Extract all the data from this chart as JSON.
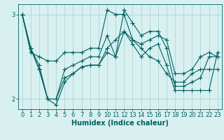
{
  "background_color": "#d8f0f0",
  "plot_bg_color": "#d8f0f0",
  "line_color": "#006060",
  "grid_color": "#aacfcf",
  "xlabel": "Humidex (Indice chaleur)",
  "xlim": [
    -0.5,
    23.5
  ],
  "ylim": [
    1.88,
    3.12
  ],
  "yticks": [
    2,
    3
  ],
  "xticks": [
    0,
    1,
    2,
    3,
    4,
    5,
    6,
    7,
    8,
    9,
    10,
    11,
    12,
    13,
    14,
    15,
    16,
    17,
    18,
    19,
    20,
    21,
    22,
    23
  ],
  "series": [
    [
      3.0,
      2.55,
      2.5,
      2.45,
      2.45,
      2.55,
      2.55,
      2.55,
      2.6,
      2.6,
      3.05,
      3.0,
      3.0,
      2.7,
      2.65,
      2.7,
      2.75,
      2.7,
      2.3,
      2.3,
      2.35,
      2.5,
      2.55,
      2.5
    ],
    [
      3.0,
      2.6,
      2.35,
      2.0,
      2.0,
      2.25,
      2.3,
      2.38,
      2.4,
      2.4,
      2.6,
      2.7,
      2.8,
      2.7,
      2.6,
      2.5,
      2.45,
      2.3,
      2.2,
      2.2,
      2.3,
      2.35,
      2.35,
      2.35
    ],
    [
      3.0,
      2.6,
      2.35,
      2.0,
      1.93,
      2.2,
      2.3,
      2.38,
      2.4,
      2.4,
      2.55,
      2.5,
      2.8,
      2.65,
      2.5,
      2.6,
      2.65,
      2.4,
      2.1,
      2.1,
      2.1,
      2.1,
      2.1,
      2.55
    ],
    [
      3.0,
      2.6,
      2.4,
      2.0,
      2.0,
      2.35,
      2.4,
      2.45,
      2.5,
      2.5,
      2.75,
      2.5,
      3.05,
      2.9,
      2.75,
      2.8,
      2.8,
      2.6,
      2.15,
      2.15,
      2.2,
      2.25,
      2.5,
      2.5
    ]
  ],
  "marker": "+",
  "markersize": 4,
  "linewidth": 0.8,
  "xlabel_fontsize": 7,
  "tick_fontsize": 6,
  "xlabel_fontweight": "bold"
}
